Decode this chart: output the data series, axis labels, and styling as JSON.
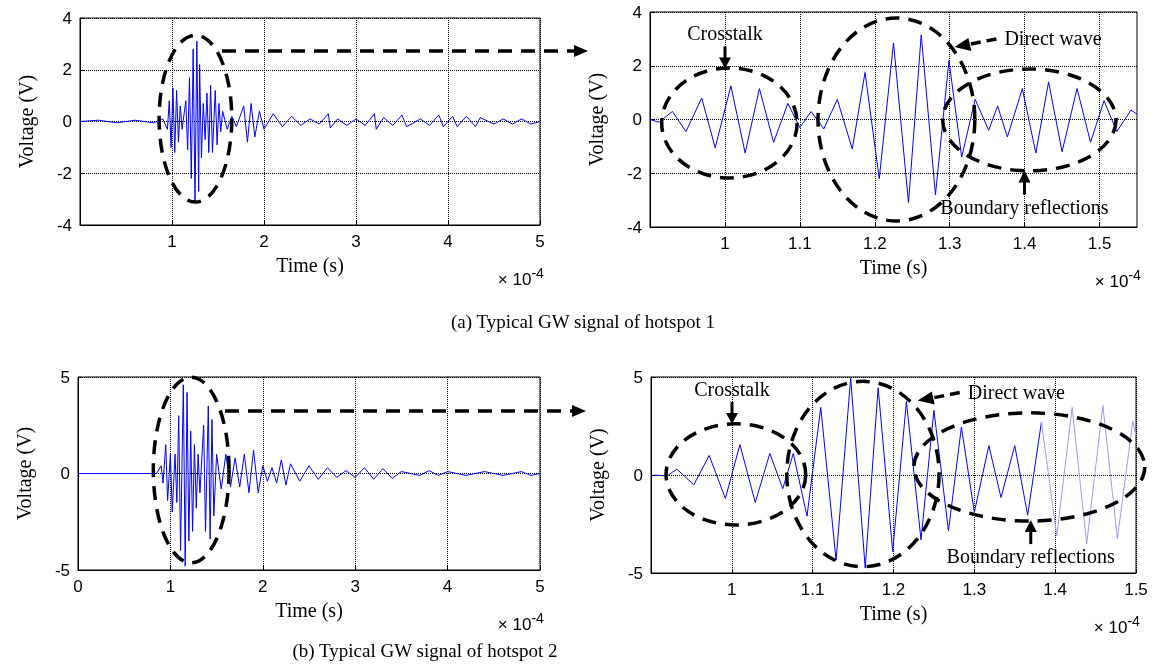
{
  "chart_data": [
    {
      "type": "line",
      "xlabel": "Time (s)",
      "ylabel": "Voltage (V)",
      "xlim": [
        0,
        5
      ],
      "xticks": [
        1,
        2,
        3,
        4,
        5
      ],
      "ylim": [
        -4,
        4
      ],
      "yticks": [
        -4,
        -2,
        0,
        2,
        4
      ],
      "grid": true,
      "annotations": [
        "× 10$^{-4}$",
        "(a) Typical GW signal of hotspot 1"
      ],
      "series": [
        {
          "color": "#0000ff",
          "x": [
            0,
            0.2,
            0.4,
            0.6,
            0.8,
            0.9,
            0.95,
            0.97,
            0.99,
            1.01,
            1.03,
            1.05,
            1.07,
            1.09,
            1.11,
            1.15,
            1.17,
            1.19,
            1.21,
            1.23,
            1.25,
            1.27,
            1.29,
            1.3,
            1.32,
            1.34,
            1.36,
            1.38,
            1.4,
            1.42,
            1.44,
            1.47,
            1.49,
            1.51,
            1.53,
            1.55,
            1.6,
            1.65,
            1.7,
            1.78,
            1.82,
            1.86,
            1.9,
            1.95,
            2.0,
            2.1,
            2.2,
            2.3,
            2.4,
            2.5,
            2.6,
            2.7,
            2.72,
            2.8,
            2.9,
            3.0,
            3.1,
            3.2,
            3.22,
            3.3,
            3.4,
            3.5,
            3.55,
            3.7,
            3.8,
            3.9,
            3.95,
            4.05,
            4.1,
            4.2,
            4.3,
            4.35,
            4.5,
            4.6,
            4.7,
            4.8,
            4.9,
            5
          ],
          "values": [
            0,
            0.05,
            -0.05,
            0.05,
            -0.05,
            0.1,
            -0.3,
            0.8,
            -1.0,
            1.3,
            -1.2,
            1.2,
            -0.8,
            0.6,
            -0.3,
            0.8,
            -1.1,
            1.7,
            -2.2,
            2.8,
            -3.1,
            3.1,
            -2.7,
            2.2,
            -1.4,
            0.7,
            -0.7,
            1.1,
            -1.2,
            1.4,
            -1.2,
            1.2,
            -0.9,
            0.7,
            -0.4,
            0.4,
            -0.3,
            0.2,
            -0.2,
            0.6,
            -0.8,
            0.7,
            -0.6,
            0.4,
            -0.3,
            0.3,
            -0.2,
            0.2,
            -0.15,
            0.1,
            -0.1,
            0.3,
            -0.25,
            0.1,
            -0.15,
            0.1,
            -0.15,
            0.3,
            -0.3,
            0.15,
            -0.15,
            0.25,
            -0.2,
            0.1,
            -0.15,
            0.25,
            -0.2,
            0.2,
            -0.2,
            0.2,
            -0.2,
            0.15,
            -0.1,
            0.1,
            -0.1,
            0.1,
            -0.1,
            0
          ]
        }
      ]
    },
    {
      "type": "line",
      "xlabel": "Time (s)",
      "ylabel": "Voltage (V)",
      "xlim": [
        0.9,
        1.55
      ],
      "xticks": [
        1,
        1.1,
        1.2,
        1.3,
        1.4,
        1.5
      ],
      "ylim": [
        -4,
        4
      ],
      "yticks": [
        -4,
        -2,
        0,
        2,
        4
      ],
      "grid": true,
      "annotations": [
        "× 10$^{-4}$",
        "Crosstalk",
        "Direct wave",
        "Boundary reflections"
      ],
      "series": [
        {
          "color": "#0000ff",
          "x": [
            0.9,
            0.912,
            0.93,
            0.948,
            0.969,
            0.987,
            1.008,
            1.027,
            1.046,
            1.065,
            1.084,
            1.1,
            1.115,
            1.132,
            1.15,
            1.17,
            1.187,
            1.206,
            1.225,
            1.245,
            1.262,
            1.281,
            1.299,
            1.316,
            1.334,
            1.352,
            1.364,
            1.377,
            1.397,
            1.415,
            1.432,
            1.45,
            1.47,
            1.488,
            1.506,
            1.523,
            1.542,
            1.55
          ],
          "values": [
            0,
            -0.1,
            0.3,
            -0.45,
            0.8,
            -1.05,
            1.25,
            -1.25,
            1.15,
            -0.85,
            0.6,
            -0.3,
            0.3,
            -0.35,
            0.75,
            -1.1,
            1.75,
            -2.2,
            2.85,
            -3.1,
            3.15,
            -2.8,
            2.2,
            -1.4,
            0.75,
            -0.4,
            0.5,
            -0.65,
            1.15,
            -1.25,
            1.4,
            -1.2,
            1.15,
            -0.85,
            0.7,
            -0.45,
            0.35,
            0.2
          ]
        }
      ]
    },
    {
      "type": "line",
      "xlabel": "Time (s)",
      "ylabel": "Voltage (V)",
      "xlim": [
        0,
        5
      ],
      "xticks": [
        0,
        1,
        2,
        3,
        4,
        5
      ],
      "ylim": [
        -5,
        5
      ],
      "yticks": [
        -5,
        0,
        5
      ],
      "grid": true,
      "annotations": [
        "× 10$^{-4}$",
        "(b) Typical GW signal of hotspot 2"
      ],
      "series": [
        {
          "color": "#0000ff",
          "x": [
            0,
            0.85,
            0.9,
            0.92,
            0.95,
            0.97,
            1.0,
            1.02,
            1.05,
            1.07,
            1.09,
            1.11,
            1.14,
            1.16,
            1.18,
            1.2,
            1.22,
            1.24,
            1.26,
            1.28,
            1.3,
            1.32,
            1.36,
            1.38,
            1.41,
            1.43,
            1.45,
            1.47,
            1.5,
            1.55,
            1.6,
            1.65,
            1.7,
            1.75,
            1.8,
            1.85,
            1.9,
            1.95,
            2.0,
            2.05,
            2.1,
            2.15,
            2.2,
            2.25,
            2.3,
            2.4,
            2.5,
            2.6,
            2.7,
            2.8,
            2.9,
            3.0,
            3.1,
            3.2,
            3.3,
            3.4,
            3.5,
            3.7,
            3.8,
            3.9,
            4.0,
            4.2,
            4.4,
            4.6,
            4.8,
            4.9,
            5
          ],
          "values": [
            0,
            0,
            0.4,
            -0.5,
            1.5,
            -1.4,
            1.0,
            -2.0,
            1.0,
            -1.5,
            3.0,
            -4.0,
            4.6,
            -4.8,
            4.2,
            -3.5,
            2.2,
            -3.0,
            1.5,
            -1.8,
            1.0,
            -1.0,
            2.5,
            -3.0,
            3.5,
            -3.4,
            2.8,
            -2.2,
            1.0,
            -0.8,
            1.0,
            -0.7,
            0.8,
            -0.7,
            1.0,
            -1.0,
            1.2,
            -1.0,
            0.4,
            -0.4,
            0.3,
            -0.5,
            0.7,
            -0.6,
            0.5,
            -0.4,
            0.4,
            -0.3,
            0.3,
            -0.2,
            0.15,
            -0.2,
            0.3,
            -0.3,
            0.25,
            -0.25,
            0.1,
            -0.1,
            0.15,
            -0.1,
            0.1,
            -0.1,
            0.1,
            -0.1,
            0.1,
            -0.1,
            0
          ]
        }
      ]
    },
    {
      "type": "line",
      "xlabel": "Time (s)",
      "ylabel": "Voltage (V)",
      "xlim": [
        0.9,
        1.5
      ],
      "xticks": [
        1,
        1.1,
        1.2,
        1.3,
        1.4,
        1.5
      ],
      "ylim": [
        -5,
        5
      ],
      "yticks": [
        -5,
        0,
        5
      ],
      "grid": true,
      "annotations": [
        "× 10$^{-4}$",
        "Crosstalk",
        "Direct wave",
        "Boundary reflections"
      ],
      "series": [
        {
          "color": "#0000ff",
          "x": [
            0.904,
            0.92,
            0.932,
            0.953,
            0.972,
            0.992,
            1.01,
            1.029,
            1.047,
            1.063,
            1.076,
            1.093,
            1.11,
            1.129,
            1.147,
            1.165,
            1.181,
            1.199,
            1.216,
            1.234,
            1.25,
            1.268,
            1.284,
            1.3,
            1.318,
            1.333,
            1.35,
            1.366,
            1.383
          ],
          "values": [
            0,
            -0.05,
            0.3,
            -0.5,
            1.0,
            -1.2,
            1.55,
            -1.4,
            1.1,
            -0.7,
            1.1,
            -2.1,
            3.45,
            -4.35,
            4.95,
            -4.75,
            4.45,
            -3.9,
            3.75,
            -3.3,
            3.3,
            -2.85,
            2.45,
            -1.9,
            1.5,
            -1.15,
            1.5,
            -2.05,
            2.7
          ]
        },
        {
          "color": "#9a9af5",
          "x": [
            1.383,
            1.402,
            1.421,
            1.439,
            1.459,
            1.477,
            1.496,
            1.5
          ],
          "values": [
            2.7,
            -3.1,
            3.45,
            -3.5,
            3.55,
            -3.25,
            2.75,
            2.0
          ]
        }
      ]
    }
  ]
}
